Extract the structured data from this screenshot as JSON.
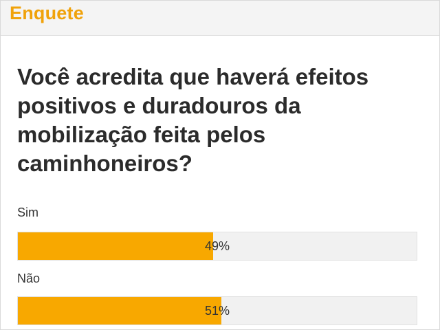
{
  "poll": {
    "header_title": "Enquete",
    "question": "Você acredita que haverá efeitos positivos e duradouros da mobilização feita pelos caminhoneiros?",
    "options": [
      {
        "label": "Sim",
        "percent_text": "49%",
        "percent": 49
      },
      {
        "label": "Não",
        "percent_text": "51%",
        "percent": 51
      }
    ],
    "colors": {
      "accent": "#f0a20a",
      "bar_fill": "#f8a800",
      "bar_track": "#f1f1f1"
    }
  }
}
